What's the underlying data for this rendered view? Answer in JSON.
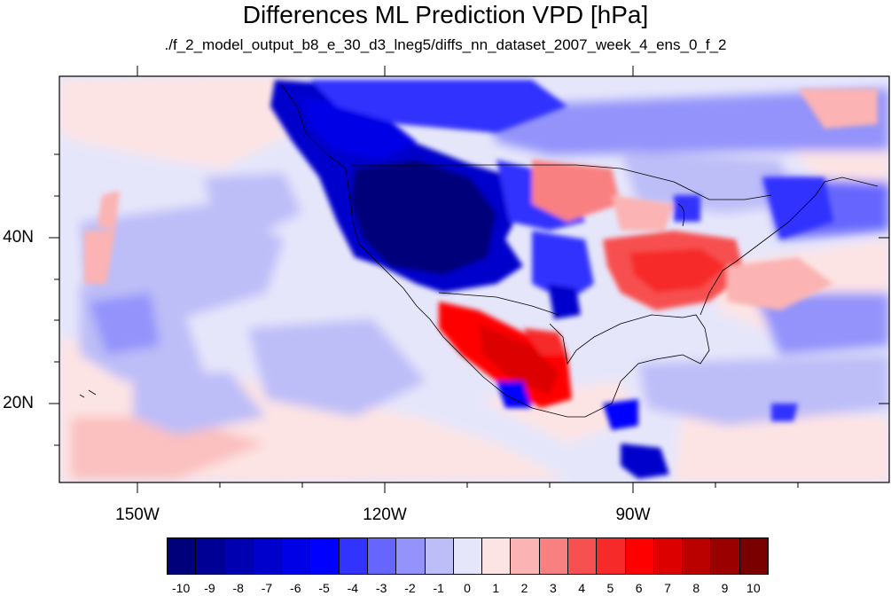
{
  "title": "Differences ML Prediction VPD [hPa]",
  "subtitle": "./f_2_model_output_b8_e_30_d3_lneg5/diffs_nn_dataset_2007_week_4_ens_0_f_2",
  "map": {
    "projection": "cylindrical-equidistant",
    "lon_range": [
      -160,
      -60
    ],
    "lat_range": [
      10.5,
      60
    ],
    "lon_axis_labels": [
      "150W",
      "120W",
      "90W"
    ],
    "lat_axis_labels": [
      "40N",
      "20N"
    ],
    "colormap": "blue-white-red diverging"
  },
  "colorbar": {
    "labels": [
      "-10",
      "-9",
      "-8",
      "-7",
      "-6",
      "-5",
      "-4",
      "-3",
      "-2",
      "-1",
      "0",
      "1",
      "2",
      "3",
      "4",
      "5",
      "6",
      "7",
      "8",
      "9",
      "10"
    ],
    "colors": [
      "#00007a",
      "#000095",
      "#0000b0",
      "#0000cc",
      "#0000e6",
      "#0000ff",
      "#3333ff",
      "#6666ff",
      "#9393fb",
      "#bdbdf8",
      "#e6e6fb",
      "#fde4e4",
      "#fbb3b3",
      "#f98080",
      "#f75050",
      "#f72a2a",
      "#ff0000",
      "#dc0000",
      "#bb0000",
      "#9b0000",
      "#7a0000"
    ]
  }
}
